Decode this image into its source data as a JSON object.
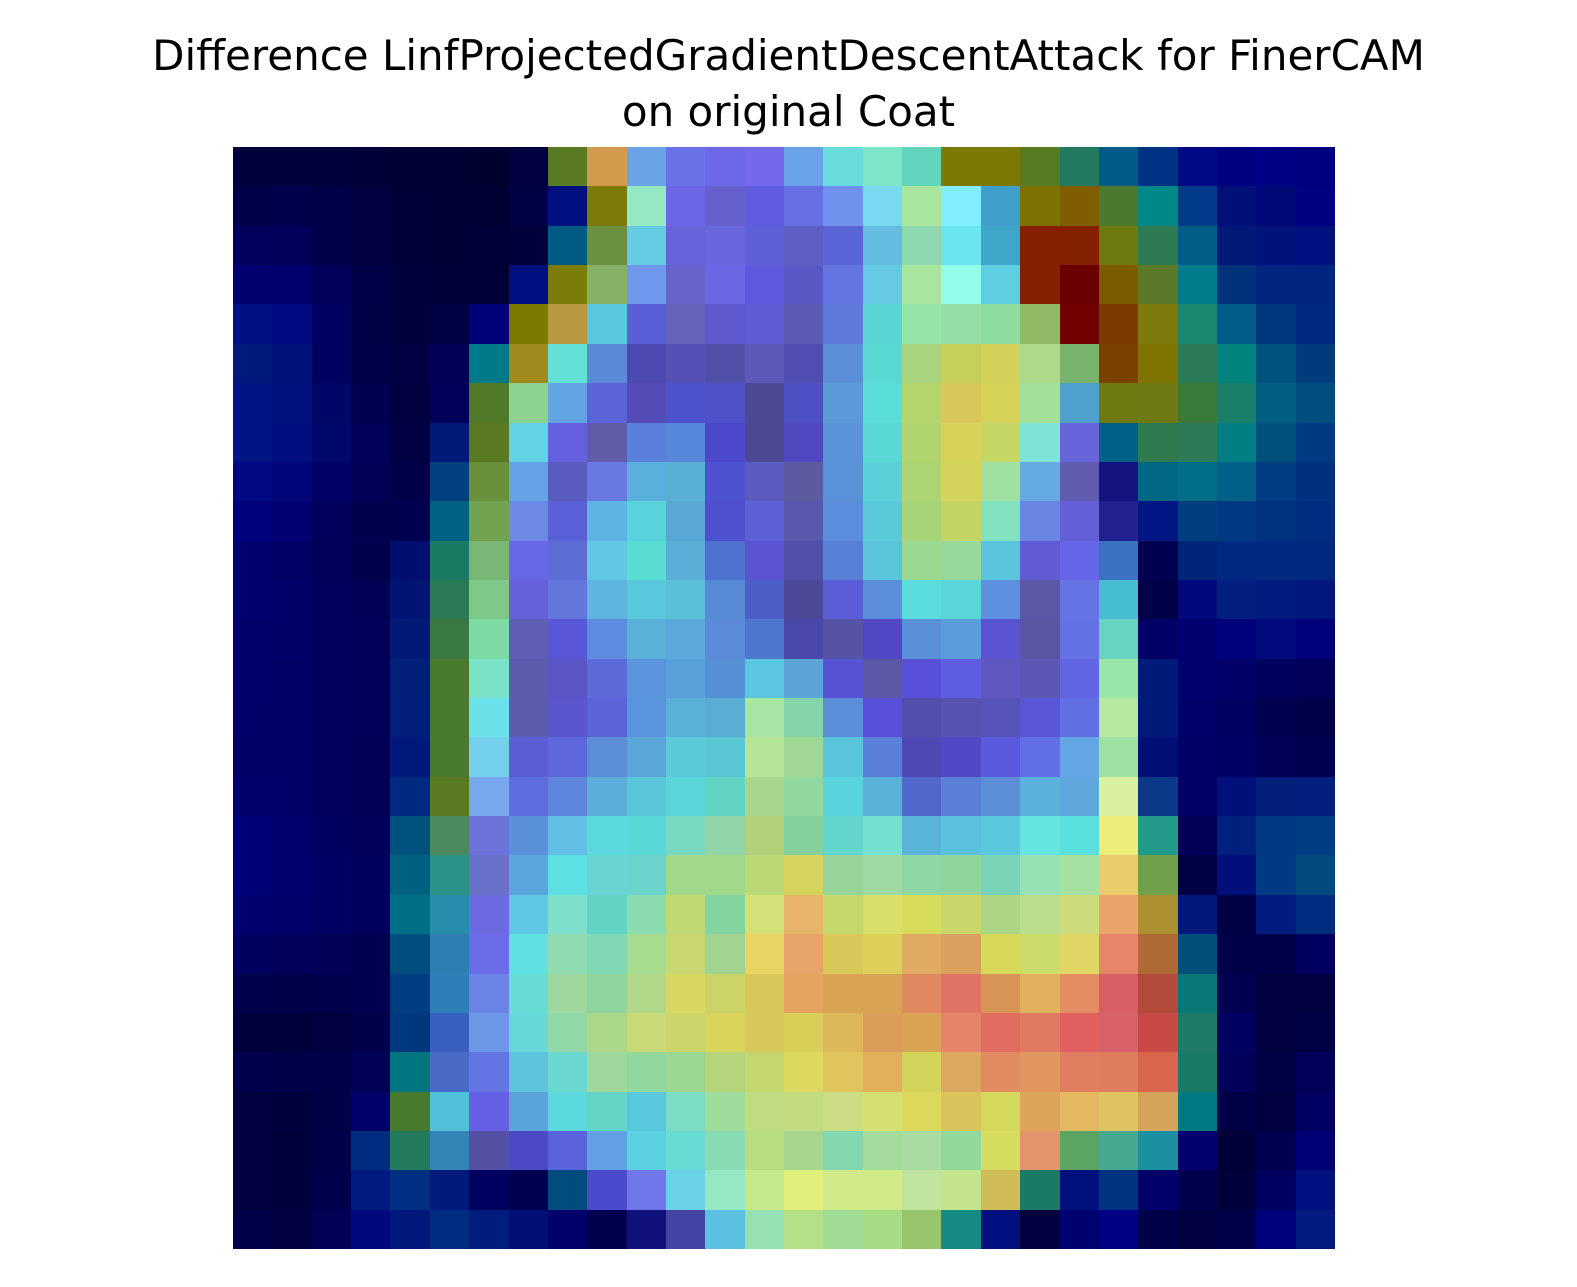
{
  "figure": {
    "title_line1": "Difference LinfProjectedGradientDescentAttack for FinerCAM",
    "title_line2": "on original Coat"
  },
  "image": {
    "description_name": "overlay-heatmap",
    "grid": [
      [
        "#00003b",
        "#00003c",
        "#00003a",
        "#000036",
        "#000032",
        "#000032",
        "#000030",
        "#00003e",
        "#5a7a22",
        "#d39a4e",
        "#6aa4e6",
        "#6a72e6",
        "#6e68ea",
        "#7468ec",
        "#6aa2ea",
        "#6adcdc",
        "#7ee6c8",
        "#62d4be",
        "#7c7a02",
        "#7c7a02",
        "#587a22",
        "#227a60",
        "#005a8a",
        "#003284",
        "#000a84",
        "#000080",
        "#000084",
        "#00007e"
      ],
      [
        "#00004a",
        "#00004c",
        "#000048",
        "#00003e",
        "#000036",
        "#000032",
        "#000032",
        "#000044",
        "#00107e",
        "#7c7a08",
        "#94e8c4",
        "#6a66e6",
        "#6660cc",
        "#605ce0",
        "#6670e4",
        "#6e92ee",
        "#7ad8f0",
        "#a8e6a0",
        "#80eefe",
        "#3ea0ca",
        "#7c7200",
        "#805e00",
        "#4a7a2e",
        "#008888",
        "#003a88",
        "#001078",
        "#000878",
        "#000080"
      ],
      [
        "#00005c",
        "#00005a",
        "#00004a",
        "#000040",
        "#000038",
        "#000034",
        "#000038",
        "#00003a",
        "#005a84",
        "#6a9040",
        "#64cce2",
        "#6664d8",
        "#6868dc",
        "#5e60d8",
        "#5e5ec4",
        "#5a66d6",
        "#64bce0",
        "#8ed8b0",
        "#6ae4ee",
        "#3ea6c8",
        "#842000",
        "#822000",
        "#6e7a0e",
        "#2e7a52",
        "#005e88",
        "#001878",
        "#00127c",
        "#00107e"
      ],
      [
        "#000070",
        "#00006e",
        "#00005a",
        "#000048",
        "#00003c",
        "#000038",
        "#000036",
        "#00107e",
        "#7c7c08",
        "#86b066",
        "#7098ec",
        "#6664cc",
        "#6a68e4",
        "#5e5ade",
        "#5a58c4",
        "#6474e0",
        "#66cae4",
        "#a8e6a0",
        "#94feea",
        "#5ecfe0",
        "#842000",
        "#6a0000",
        "#7c5c00",
        "#5a7a2a",
        "#007c8a",
        "#00327a",
        "#002480",
        "#002480"
      ],
      [
        "#001282",
        "#000a80",
        "#000060",
        "#000046",
        "#00003c",
        "#000044",
        "#000078",
        "#7c7a00",
        "#b89840",
        "#5ac8dc",
        "#5a5ed8",
        "#6664b8",
        "#5e5ace",
        "#605cd4",
        "#5c5ab4",
        "#5e78dc",
        "#5ad4d4",
        "#96e4aa",
        "#96dea8",
        "#8edca0",
        "#92ba66",
        "#720000",
        "#7c3a00",
        "#7c7a0a",
        "#1a8870",
        "#005c88",
        "#00367e",
        "#002880"
      ],
      [
        "#001a7c",
        "#00127a",
        "#000060",
        "#000048",
        "#000042",
        "#000054",
        "#007a86",
        "#a08a1c",
        "#62e0d6",
        "#5a8ad6",
        "#4e4ab4",
        "#5450b4",
        "#5050a8",
        "#5c58b8",
        "#504eb0",
        "#5a8ed6",
        "#5ad8d4",
        "#a8d47e",
        "#c6d058",
        "#d2d25a",
        "#aed88a",
        "#78b46c",
        "#7c4000",
        "#7e7400",
        "#2a7a56",
        "#00827e",
        "#00527e",
        "#003c7c"
      ],
      [
        "#001484",
        "#00107c",
        "#000666",
        "#000052",
        "#00003e",
        "#000058",
        "#507a2a",
        "#8ed290",
        "#62a4e2",
        "#5a64d8",
        "#564cb8",
        "#4e52cc",
        "#5050c8",
        "#4c4a92",
        "#4e50c4",
        "#5a9ad8",
        "#5adcd8",
        "#b4d46c",
        "#d8c858",
        "#d4d258",
        "#a2e09a",
        "#50a0ce",
        "#6e7a10",
        "#707a14",
        "#3a7a3a",
        "#1a7e68",
        "#005e82",
        "#004e80"
      ],
      [
        "#001484",
        "#000e7e",
        "#00086e",
        "#000058",
        "#000042",
        "#001a78",
        "#5a7a22",
        "#60d4e4",
        "#6460e0",
        "#605ca8",
        "#5a80dc",
        "#5686d8",
        "#4c48cc",
        "#4c4a94",
        "#5048c0",
        "#5a92d8",
        "#5ad8d6",
        "#b0d46e",
        "#d6d25a",
        "#c6d664",
        "#7ee4d8",
        "#6664d8",
        "#00608a",
        "#2e7a4e",
        "#2a7a58",
        "#007e84",
        "#00507e",
        "#003a80"
      ],
      [
        "#000882",
        "#000678",
        "#000066",
        "#000054",
        "#00004a",
        "#00407e",
        "#6a903a",
        "#64a4e6",
        "#5a5cc0",
        "#6a78e4",
        "#5ab0dc",
        "#5ab0d4",
        "#4e52d0",
        "#5c5cc0",
        "#5c5aa0",
        "#5a92d8",
        "#5ad0d8",
        "#acd472",
        "#d4d45c",
        "#a0e0a0",
        "#64aae4",
        "#605cb0",
        "#141480",
        "#006882",
        "#006e86",
        "#006088",
        "#003c82",
        "#00307e"
      ],
      [
        "#00007a",
        "#000072",
        "#00005c",
        "#00004e",
        "#000050",
        "#006282",
        "#72a250",
        "#6a8ae6",
        "#5a60d8",
        "#60b4e4",
        "#5ad4dc",
        "#5aa6d4",
        "#4e50d0",
        "#5e60d8",
        "#5858ac",
        "#5a8edc",
        "#5acad8",
        "#a8d478",
        "#c4d464",
        "#82e2c0",
        "#6a86e4",
        "#6460d8",
        "#222290",
        "#001682",
        "#003e80",
        "#003882",
        "#003280",
        "#002c80"
      ],
      [
        "#00006e",
        "#000066",
        "#000058",
        "#00004c",
        "#000e70",
        "#1a7a64",
        "#78b874",
        "#6868e6",
        "#5e6ed6",
        "#60c8e4",
        "#5adcd4",
        "#5aaed8",
        "#4e72d0",
        "#5a54d0",
        "#5050a8",
        "#5880d8",
        "#5ac4d8",
        "#9ad892",
        "#96d89a",
        "#5ac4dc",
        "#625cd4",
        "#6866e8",
        "#3a72c0",
        "#000050",
        "#002478",
        "#002880",
        "#002a80",
        "#00287e"
      ],
      [
        "#00006e",
        "#000068",
        "#00005c",
        "#000054",
        "#001474",
        "#2a7a56",
        "#7ec88a",
        "#6662dc",
        "#6276dc",
        "#60b4e2",
        "#5ac8dc",
        "#5ac0d8",
        "#568ad4",
        "#4c5ec8",
        "#4c4898",
        "#5a5cd8",
        "#5a8ed8",
        "#5adcdc",
        "#5ad6d8",
        "#5e90e0",
        "#5c58a8",
        "#6474e4",
        "#46bcd0",
        "#000048",
        "#00087e",
        "#001e80",
        "#001a80",
        "#00187e"
      ],
      [
        "#00006a",
        "#000068",
        "#00005c",
        "#000058",
        "#001a76",
        "#3a7a42",
        "#7edaa4",
        "#5e5eb4",
        "#5a56d8",
        "#5e8ce0",
        "#5ab0d8",
        "#5aa8dc",
        "#5a8ad8",
        "#4e78d0",
        "#4a48a8",
        "#5652a4",
        "#5048c4",
        "#5a90d8",
        "#5a9cdc",
        "#5a54d0",
        "#5a56a4",
        "#6472e4",
        "#66d4c0",
        "#000066",
        "#000070",
        "#00007a",
        "#000a7c",
        "#00007a"
      ],
      [
        "#00006a",
        "#000066",
        "#00005c",
        "#000058",
        "#00207a",
        "#487a30",
        "#7ae2c8",
        "#5c5cae",
        "#5a56c8",
        "#5e6ad8",
        "#5a94dc",
        "#58a0d8",
        "#5690d4",
        "#5ac6e0",
        "#5aa4d8",
        "#5654d4",
        "#5c58a8",
        "#5850d8",
        "#5e5ce0",
        "#5e58c0",
        "#5c56b4",
        "#6266e4",
        "#9ae6a8",
        "#001a7a",
        "#00006e",
        "#000068",
        "#00005e",
        "#000058"
      ],
      [
        "#000068",
        "#000066",
        "#00005c",
        "#000058",
        "#00207c",
        "#487a30",
        "#6ae0e8",
        "#5c5cae",
        "#5a56cc",
        "#5c62d8",
        "#5a94dc",
        "#5ab0d8",
        "#5aaed4",
        "#a6e6a2",
        "#84d6a8",
        "#5a8ed8",
        "#5850d8",
        "#524eac",
        "#5654b0",
        "#5654b8",
        "#5a56d8",
        "#6270e4",
        "#b6e8a2",
        "#001a7a",
        "#00006a",
        "#000060",
        "#000050",
        "#000048"
      ],
      [
        "#000066",
        "#000066",
        "#00005c",
        "#000054",
        "#001a7c",
        "#487a30",
        "#74d0ec",
        "#5c5cd4",
        "#5e68dc",
        "#5c8ed8",
        "#5aa6d8",
        "#5acad8",
        "#5ac8d4",
        "#b4e498",
        "#9ed894",
        "#5ac4dc",
        "#5a80dc",
        "#4e48b4",
        "#5048c4",
        "#5a58dc",
        "#6070e4",
        "#62a6e4",
        "#9ee0a4",
        "#000e76",
        "#000066",
        "#000064",
        "#000054",
        "#000052"
      ],
      [
        "#00006c",
        "#000068",
        "#00005c",
        "#000054",
        "#002a80",
        "#5a7a22",
        "#78a8ee",
        "#5e6edc",
        "#5e86dc",
        "#5cacdc",
        "#5ac4d8",
        "#5ad6d8",
        "#62d4c4",
        "#a6d690",
        "#92d89e",
        "#5ad4dc",
        "#5ab0d8",
        "#5268cc",
        "#5a80d8",
        "#5c8ed8",
        "#5cb0dc",
        "#5ea6dc",
        "#d8f0a0",
        "#0c3888",
        "#000066",
        "#00107a",
        "#00207c",
        "#001e7e"
      ],
      [
        "#000074",
        "#00006e",
        "#000060",
        "#000058",
        "#00507e",
        "#4a8a5e",
        "#6c72da",
        "#5a90d8",
        "#62c0e6",
        "#5ad8dc",
        "#5ad8d8",
        "#78d8c0",
        "#90d4a8",
        "#b0d07a",
        "#84d09a",
        "#62d6cc",
        "#74e0d0",
        "#5ab4d8",
        "#5ac0dc",
        "#5ac8dc",
        "#66e4e2",
        "#5ae0dc",
        "#ecee78",
        "#229a8a",
        "#000054",
        "#00207e",
        "#003882",
        "#003c82"
      ],
      [
        "#000076",
        "#000070",
        "#000064",
        "#00005e",
        "#006082",
        "#2a9488",
        "#6870ca",
        "#5aa6dc",
        "#5ce0e4",
        "#6ad4d4",
        "#6ad4cc",
        "#a2d88c",
        "#a2d88c",
        "#bad876",
        "#d6d45c",
        "#96d49a",
        "#9ed8a2",
        "#8ed6a4",
        "#90d69c",
        "#7ad4b8",
        "#96e2b4",
        "#a4e0a0",
        "#eccc6a",
        "#70a04a",
        "#000044",
        "#000e7c",
        "#003a82",
        "#004a80"
      ],
      [
        "#00006e",
        "#00006a",
        "#000064",
        "#00005e",
        "#007084",
        "#288cac",
        "#6c6ce0",
        "#5ec8e4",
        "#7ee0cc",
        "#62d4c4",
        "#8adcb0",
        "#c0d874",
        "#84d4a0",
        "#d6e078",
        "#e6b46a",
        "#c4d86c",
        "#d8e06a",
        "#d8dc5c",
        "#c8d66a",
        "#acd686",
        "#bcde8c",
        "#ccdc7c",
        "#eaa46a",
        "#ac9030",
        "#00187c",
        "#000044",
        "#001c80",
        "#002c80"
      ],
      [
        "#00005e",
        "#00005a",
        "#000056",
        "#000052",
        "#004e80",
        "#2e7eb4",
        "#6c6ce6",
        "#60e0e0",
        "#90dcb0",
        "#80d8b4",
        "#a6dc8e",
        "#cad670",
        "#a0d490",
        "#e8d462",
        "#e8a468",
        "#d8c85a",
        "#dcd05a",
        "#e0aa62",
        "#dca05e",
        "#d8d85a",
        "#ccdc6c",
        "#e0d664",
        "#e8846a",
        "#b06a36",
        "#00507c",
        "#000048",
        "#000048",
        "#000060"
      ],
      [
        "#00004c",
        "#000048",
        "#00004c",
        "#000050",
        "#003c80",
        "#2e7eb8",
        "#6a84e6",
        "#66dcd6",
        "#9ed89e",
        "#90d4a0",
        "#b0d888",
        "#d8d860",
        "#ccd468",
        "#d8c85a",
        "#e6a460",
        "#d8a454",
        "#d8a454",
        "#e08860",
        "#e07464",
        "#d89454",
        "#e0b05c",
        "#e48c62",
        "#d86064",
        "#b44a3c",
        "#0a7878",
        "#000052",
        "#00003e",
        "#000040"
      ],
      [
        "#00003a",
        "#00003a",
        "#00003e",
        "#00004a",
        "#003880",
        "#3860c0",
        "#6c96e6",
        "#66d8da",
        "#90d8a8",
        "#aad888",
        "#c8da78",
        "#ccd46c",
        "#d8d45c",
        "#d8c85a",
        "#d8ce58",
        "#dcb85a",
        "#dc9c5a",
        "#d8a454",
        "#e4846a",
        "#e06c60",
        "#e07a62",
        "#e06060",
        "#d86068",
        "#c84a44",
        "#1e7a66",
        "#000060",
        "#000040",
        "#000044"
      ],
      [
        "#00004e",
        "#00004a",
        "#000048",
        "#000054",
        "#007680",
        "#4a6ac8",
        "#6474e2",
        "#5ec4dc",
        "#6ad8d0",
        "#9ed89c",
        "#92d89c",
        "#9ad892",
        "#b6d47c",
        "#c4d670",
        "#dcd860",
        "#e0c45c",
        "#e0b05a",
        "#d0d45a",
        "#dca860",
        "#e08c60",
        "#e0965c",
        "#e07c60",
        "#e07c5e",
        "#d8664c",
        "#1a7a66",
        "#00005a",
        "#000044",
        "#000058"
      ],
      [
        "#000040",
        "#00003c",
        "#000046",
        "#00006a",
        "#467a2e",
        "#4ec0d8",
        "#6660e4",
        "#5aa4dc",
        "#5ad8dc",
        "#64d4c4",
        "#5ac8dc",
        "#7cdcc4",
        "#9edc9c",
        "#c0dc80",
        "#c4dc80",
        "#ccdc84",
        "#d6e070",
        "#dcd85c",
        "#d8c45a",
        "#d4d85c",
        "#dca45a",
        "#e4b860",
        "#e0c260",
        "#d4a45a",
        "#007a82",
        "#000046",
        "#000040",
        "#000062"
      ],
      [
        "#000040",
        "#00003a",
        "#00004a",
        "#002c80",
        "#247a5c",
        "#3484b8",
        "#5450a4",
        "#4c4ac4",
        "#5a62dc",
        "#62a0e4",
        "#5ad0e0",
        "#66dcd4",
        "#88dcb4",
        "#b8dc80",
        "#a6d68e",
        "#84d8b0",
        "#a4dc9c",
        "#a8dca0",
        "#92d89a",
        "#d6dc5e",
        "#e4946a",
        "#5ca462",
        "#46a88e",
        "#1a90a0",
        "#00006e",
        "#000036",
        "#000050",
        "#000074"
      ],
      [
        "#000040",
        "#00003a",
        "#00004c",
        "#001a80",
        "#002e80",
        "#001a7c",
        "#000060",
        "#000050",
        "#004c7e",
        "#4c4acc",
        "#6e76e8",
        "#6ad2e6",
        "#94e8c4",
        "#c4e88a",
        "#e0f07a",
        "#d0ea8a",
        "#d0ea8a",
        "#c0e4a0",
        "#c4e48c",
        "#d0bc56",
        "#1a7a66",
        "#00107c",
        "#003280",
        "#00006a",
        "#00004e",
        "#00003a",
        "#000060",
        "#00107e"
      ],
      [
        "#000048",
        "#000040",
        "#000054",
        "#00087c",
        "#00187c",
        "#002c80",
        "#001c7e",
        "#000e76",
        "#00006c",
        "#00004e",
        "#10107c",
        "#4444a4",
        "#5cc0e0",
        "#96e0b4",
        "#b4e088",
        "#a0dc94",
        "#a8dc84",
        "#98c46c",
        "#148c84",
        "#00107e",
        "#000040",
        "#000070",
        "#000084",
        "#00004a",
        "#000040",
        "#00004a",
        "#00007a",
        "#001a80"
      ]
    ]
  }
}
